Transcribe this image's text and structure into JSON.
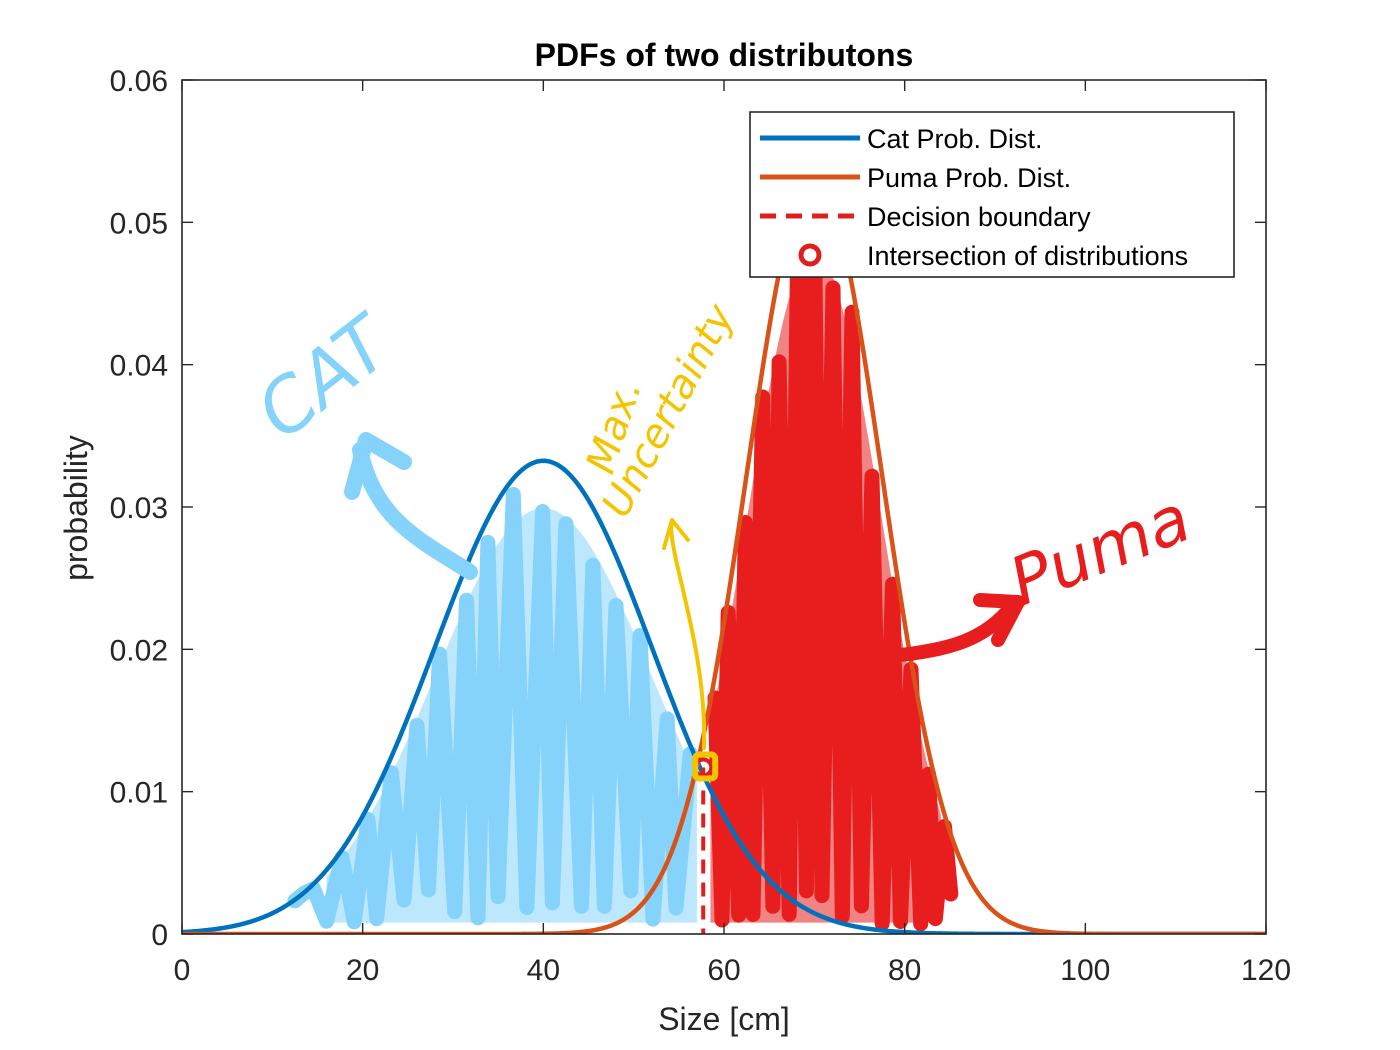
{
  "colors": {
    "cat_line": "#0072BD",
    "puma_line": "#D95319",
    "boundary": "#E01E1E",
    "intersection_marker": "#E01E1E",
    "cat_scribble": "#85D3FA",
    "puma_scribble": "#E81E1E",
    "max_uncertainty": "#F5C400",
    "axes": "#262626"
  },
  "chart_data": {
    "type": "line",
    "title": "PDFs of two distributons",
    "xlabel": "Size [cm]",
    "ylabel": "probability",
    "xlim": [
      0,
      120
    ],
    "ylim": [
      0,
      0.06
    ],
    "xticks": [
      0,
      20,
      40,
      60,
      80,
      100,
      120
    ],
    "yticks": [
      0,
      0.01,
      0.02,
      0.03,
      0.04,
      0.05,
      0.06
    ],
    "xtick_labels": [
      "0",
      "20",
      "40",
      "60",
      "80",
      "100",
      "120"
    ],
    "ytick_labels": [
      "0",
      "0.01",
      "0.02",
      "0.03",
      "0.04",
      "0.05",
      "0.06"
    ],
    "grid": false,
    "legend_position": "top-right",
    "series": [
      {
        "name": "Cat Prob. Dist.",
        "distribution": "normal",
        "mean": 40,
        "std": 12,
        "color": "#0072BD"
      },
      {
        "name": "Puma Prob. Dist.",
        "distribution": "normal",
        "mean": 70,
        "std": 7.5,
        "color": "#D95319"
      }
    ],
    "decision_boundary": {
      "name": "Decision boundary",
      "x": 57.7
    },
    "intersection": {
      "name": "Intersection of distributions",
      "x": 57.7,
      "y": 0.0117
    },
    "annotations": {
      "cat": "CAT",
      "puma": "Puma",
      "max_uncertainty_line1": "Max.",
      "max_uncertainty_line2": "Uncertainty"
    }
  }
}
